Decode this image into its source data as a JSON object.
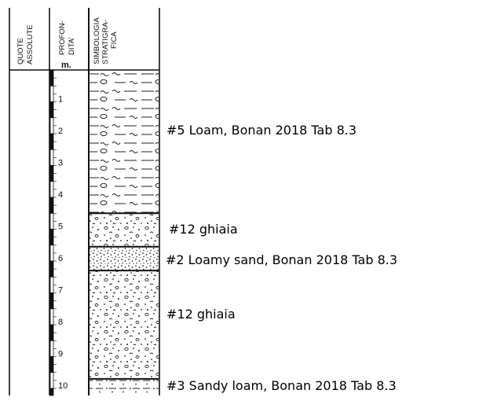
{
  "header": {
    "col1_lines": [
      "QUOTE",
      "ASSOLUTE"
    ],
    "col2_lines": [
      "PROFON-",
      "DITA'"
    ],
    "col2_unit": "m.",
    "col3_lines": [
      "SIMBOLOGIA",
      "STRATIGRA-",
      "FICA"
    ]
  },
  "depth_scale": {
    "ticks": [
      "1",
      "2",
      "3",
      "4",
      "5",
      "6",
      "7",
      "8",
      "9",
      "10"
    ],
    "max_visible": 10.5
  },
  "layers": [
    {
      "id": "loam",
      "top": 0,
      "bottom": 4.5,
      "pattern": "loam-tildes",
      "label": "#5 Loam, Bonan 2018 Tab 8.3"
    },
    {
      "id": "ghiaia-upper",
      "top": 4.5,
      "bottom": 5.55,
      "pattern": "gravel",
      "label": "#12 ghiaia"
    },
    {
      "id": "loamy-sand",
      "top": 5.55,
      "bottom": 6.3,
      "pattern": "dense-dots",
      "label": "#2 Loamy sand, Bonan 2018 Tab 8.3"
    },
    {
      "id": "ghiaia-lower",
      "top": 6.3,
      "bottom": 9.7,
      "pattern": "gravel",
      "label": "#12 ghiaia"
    },
    {
      "id": "sandy-loam",
      "top": 9.7,
      "bottom": 10.5,
      "pattern": "sandy-dashes",
      "label": "#3 Sandy loam, Bonan 2018 Tab 8.3"
    }
  ]
}
